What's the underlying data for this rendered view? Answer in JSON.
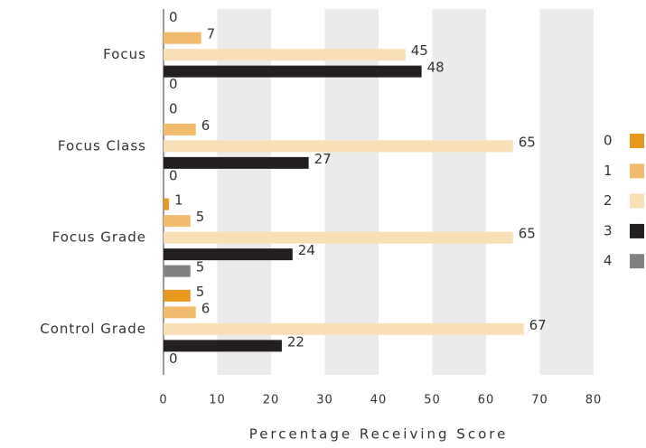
{
  "chart_data": {
    "type": "bar",
    "orientation": "horizontal",
    "x_label": "Percentage Receiving Score",
    "categories": [
      "Focus",
      "Focus Class",
      "Focus Grade",
      "Control Grade"
    ],
    "series": [
      {
        "name": "0",
        "color": "#e8981c",
        "values": [
          0,
          0,
          1,
          5
        ]
      },
      {
        "name": "1",
        "color": "#f2ba6c",
        "values": [
          7,
          6,
          5,
          6
        ]
      },
      {
        "name": "2",
        "color": "#f9dfb6",
        "values": [
          45,
          65,
          65,
          67
        ]
      },
      {
        "name": "3",
        "color": "#231f20",
        "values": [
          48,
          27,
          24,
          22
        ]
      },
      {
        "name": "4",
        "color": "#818183",
        "values": [
          0,
          0,
          5,
          0
        ]
      }
    ],
    "xlim": [
      0,
      80
    ],
    "xticks": [
      0,
      10,
      20,
      30,
      40,
      50,
      60,
      70,
      80
    ],
    "bands": true,
    "legend": "right"
  }
}
